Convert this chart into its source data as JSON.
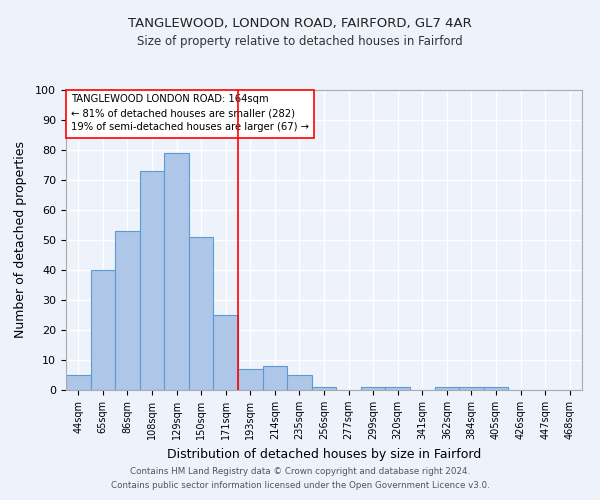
{
  "title1": "TANGLEWOOD, LONDON ROAD, FAIRFORD, GL7 4AR",
  "title2": "Size of property relative to detached houses in Fairford",
  "xlabel": "Distribution of detached houses by size in Fairford",
  "ylabel": "Number of detached properties",
  "bar_labels": [
    "44sqm",
    "65sqm",
    "86sqm",
    "108sqm",
    "129sqm",
    "150sqm",
    "171sqm",
    "193sqm",
    "214sqm",
    "235sqm",
    "256sqm",
    "277sqm",
    "299sqm",
    "320sqm",
    "341sqm",
    "362sqm",
    "384sqm",
    "405sqm",
    "426sqm",
    "447sqm",
    "468sqm"
  ],
  "bar_values": [
    5,
    40,
    53,
    73,
    79,
    51,
    25,
    7,
    8,
    5,
    1,
    0,
    1,
    1,
    0,
    1,
    1,
    1,
    0,
    0,
    0
  ],
  "bar_color": "#aec6e8",
  "bar_edge_color": "#5b9bd5",
  "background_color": "#eef2fb",
  "grid_color": "#ffffff",
  "red_line_x": 6.5,
  "annotation_line1": "TANGLEWOOD LONDON ROAD: 164sqm",
  "annotation_line2": "← 81% of detached houses are smaller (282)",
  "annotation_line3": "19% of semi-detached houses are larger (67) →",
  "footnote1": "Contains HM Land Registry data © Crown copyright and database right 2024.",
  "footnote2": "Contains public sector information licensed under the Open Government Licence v3.0.",
  "ylim": [
    0,
    100
  ],
  "yticks": [
    0,
    10,
    20,
    30,
    40,
    50,
    60,
    70,
    80,
    90,
    100
  ]
}
